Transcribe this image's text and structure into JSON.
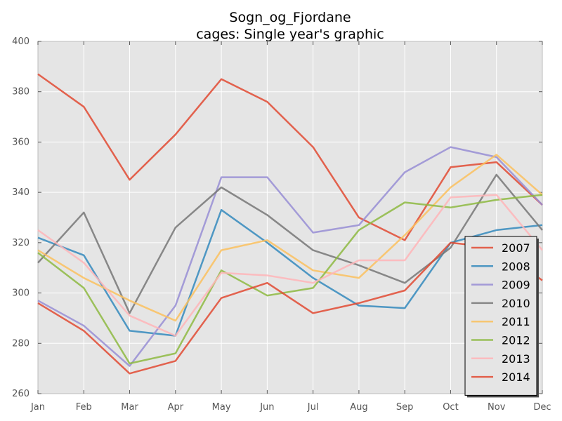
{
  "chart_data": {
    "type": "line",
    "title_lines": [
      "Sogn_og_Fjordane",
      "cages: Single year's graphic"
    ],
    "xlabel": "",
    "ylabel": "",
    "categories": [
      "Jan",
      "Feb",
      "Mar",
      "Apr",
      "May",
      "Jun",
      "Jul",
      "Aug",
      "Sep",
      "Oct",
      "Nov",
      "Dec"
    ],
    "ylim": [
      260,
      400
    ],
    "yticks": [
      260,
      280,
      300,
      320,
      340,
      360,
      380,
      400
    ],
    "grid": true,
    "background": "#e5e5e5",
    "legend_position": "lower-right",
    "series": [
      {
        "name": "2007",
        "color": "#e24a33",
        "values": [
          387,
          374,
          345,
          363,
          385,
          376,
          358,
          330,
          321,
          350,
          352,
          335
        ]
      },
      {
        "name": "2008",
        "color": "#348abd",
        "values": [
          322,
          315,
          285,
          283,
          333,
          320,
          306,
          295,
          294,
          320,
          325,
          327
        ]
      },
      {
        "name": "2009",
        "color": "#988ed5",
        "values": [
          297,
          287,
          271,
          295,
          346,
          346,
          324,
          327,
          348,
          358,
          354,
          335
        ]
      },
      {
        "name": "2010",
        "color": "#777777",
        "values": [
          312,
          332,
          292,
          326,
          342,
          331,
          317,
          311,
          304,
          318,
          347,
          325
        ]
      },
      {
        "name": "2011",
        "color": "#fbc15e",
        "values": [
          317,
          306,
          297,
          289,
          317,
          321,
          309,
          306,
          323,
          342,
          355,
          339
        ]
      },
      {
        "name": "2012",
        "color": "#8eba42",
        "values": [
          316,
          302,
          272,
          276,
          309,
          299,
          302,
          325,
          336,
          334,
          337,
          339
        ]
      },
      {
        "name": "2013",
        "color": "#ffb5b8",
        "values": [
          325,
          312,
          291,
          283,
          308,
          307,
          304,
          313,
          313,
          338,
          339,
          317
        ]
      },
      {
        "name": "2014",
        "color": "#e24a33",
        "values": [
          296,
          285,
          268,
          273,
          298,
          304,
          292,
          296,
          301,
          320,
          318,
          305
        ]
      }
    ]
  }
}
